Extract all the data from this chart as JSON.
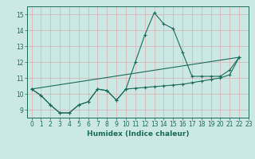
{
  "xlabel": "Humidex (Indice chaleur)",
  "ylabel": "",
  "background_color": "#cce8e4",
  "grid_color": "#d8b8b8",
  "line_color": "#1a6b5a",
  "xlim": [
    -0.5,
    23
  ],
  "ylim": [
    8.5,
    15.5
  ],
  "yticks": [
    9,
    10,
    11,
    12,
    13,
    14,
    15
  ],
  "xticks": [
    0,
    1,
    2,
    3,
    4,
    5,
    6,
    7,
    8,
    9,
    10,
    11,
    12,
    13,
    14,
    15,
    16,
    17,
    18,
    19,
    20,
    21,
    22,
    23
  ],
  "line1_x": [
    0,
    1,
    2,
    3,
    4,
    5,
    6,
    7,
    8,
    9,
    10,
    11,
    12,
    13,
    14,
    15,
    16,
    17,
    18,
    19,
    20,
    21,
    22
  ],
  "line1_y": [
    10.3,
    9.9,
    9.3,
    8.8,
    8.8,
    9.3,
    9.5,
    10.3,
    10.2,
    9.6,
    10.3,
    12.0,
    13.7,
    15.1,
    14.4,
    14.1,
    12.6,
    11.1,
    11.1,
    11.1,
    11.1,
    11.5,
    12.3
  ],
  "line2_x": [
    0,
    1,
    2,
    3,
    4,
    5,
    6,
    7,
    8,
    9,
    10,
    11,
    12,
    13,
    14,
    15,
    16,
    17,
    18,
    19,
    20,
    21,
    22
  ],
  "line2_y": [
    10.3,
    9.9,
    9.3,
    8.8,
    8.8,
    9.3,
    9.5,
    10.3,
    10.2,
    9.6,
    10.3,
    10.35,
    10.4,
    10.45,
    10.5,
    10.55,
    10.6,
    10.7,
    10.8,
    10.9,
    11.0,
    11.2,
    12.3
  ],
  "line3_x": [
    0,
    22
  ],
  "line3_y": [
    10.3,
    12.3
  ]
}
